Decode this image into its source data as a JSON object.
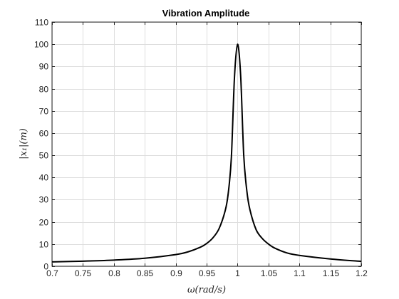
{
  "chart_data": {
    "type": "line",
    "title": "Vibration Amplitude",
    "xlabel": "ω(rad/s)",
    "ylabel": "|x₁|(m)",
    "xlim": [
      0.7,
      1.2
    ],
    "ylim": [
      0,
      110
    ],
    "grid": true,
    "legend": "none",
    "line_color": "#000000",
    "x_ticks": [
      0.7,
      0.75,
      0.8,
      0.85,
      0.9,
      0.95,
      1,
      1.05,
      1.1,
      1.15,
      1.2
    ],
    "x_tick_labels": [
      "0.7",
      "0.75",
      "0.8",
      "0.85",
      "0.9",
      "0.95",
      "1",
      "1.05",
      "1.1",
      "1.15",
      "1.2"
    ],
    "y_ticks": [
      0,
      10,
      20,
      30,
      40,
      50,
      60,
      70,
      80,
      90,
      100,
      110
    ],
    "y_tick_labels": [
      "0",
      "10",
      "20",
      "30",
      "40",
      "50",
      "60",
      "70",
      "80",
      "90",
      "100",
      "110"
    ],
    "series": [
      {
        "x": [
          0.7,
          0.75,
          0.8,
          0.85,
          0.9,
          0.92,
          0.94,
          0.95,
          0.96,
          0.97,
          0.98,
          0.985,
          0.99,
          0.995,
          1.0,
          1.005,
          1.01,
          1.015,
          1.02,
          1.03,
          1.04,
          1.05,
          1.06,
          1.08,
          1.1,
          1.15,
          1.2
        ],
        "y": [
          1.96,
          2.29,
          2.78,
          3.6,
          5.26,
          6.5,
          8.59,
          10.25,
          12.75,
          16.88,
          25.0,
          33.0,
          49.0,
          85.0,
          100.0,
          86.0,
          50.0,
          34.0,
          25.5,
          16.5,
          12.5,
          10.0,
          8.2,
          6.0,
          4.9,
          3.3,
          2.2
        ]
      }
    ]
  }
}
